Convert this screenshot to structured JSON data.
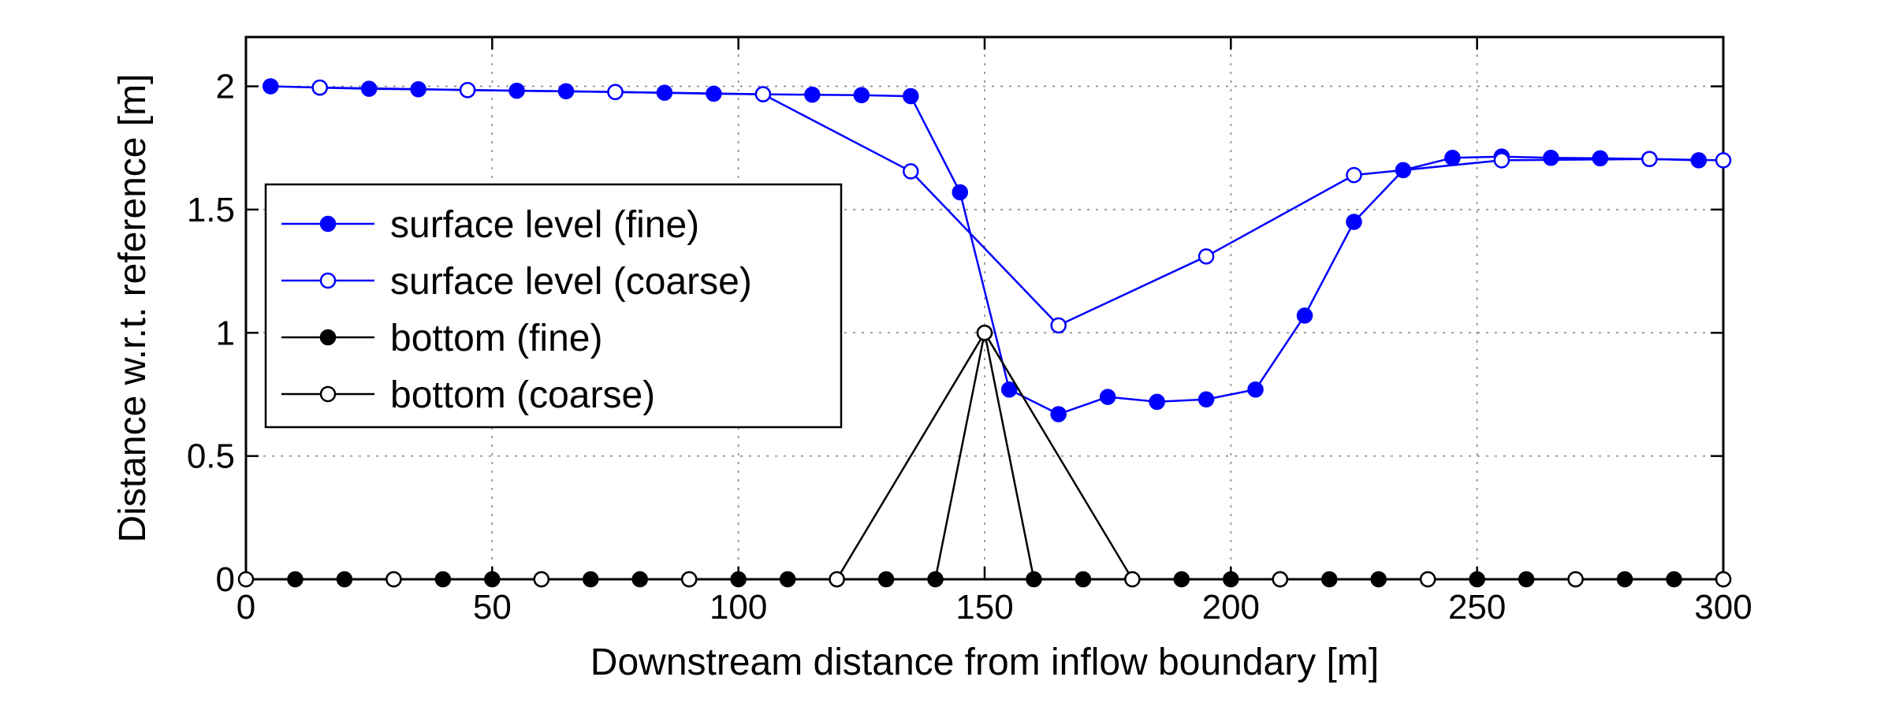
{
  "chart_data": {
    "type": "line",
    "title": "",
    "xlabel": "Downstream distance from inflow boundary [m]",
    "ylabel": "Distance w.r.t. reference [m]",
    "xlim": [
      0,
      300
    ],
    "ylim": [
      0,
      2.2
    ],
    "xticks": [
      0,
      50,
      100,
      150,
      200,
      250,
      300
    ],
    "yticks": [
      0,
      0.5,
      1,
      1.5,
      2
    ],
    "xtick_labels": [
      "0",
      "50",
      "100",
      "150",
      "200",
      "250",
      "300"
    ],
    "ytick_labels": [
      "0",
      "0.5",
      "1",
      "1.5",
      "2"
    ],
    "grid": true,
    "legend_position": "left",
    "series": [
      {
        "name": "surface level (fine)",
        "color": "#0000ff",
        "marker": "filled-circle",
        "x": [
          5,
          15,
          25,
          35,
          45,
          55,
          65,
          75,
          85,
          95,
          105,
          115,
          125,
          135,
          145,
          155,
          165,
          175,
          185,
          195,
          205,
          215,
          225,
          235,
          245,
          255,
          265,
          275,
          285,
          295
        ],
        "y": [
          2.0,
          1.995,
          1.99,
          1.988,
          1.985,
          1.982,
          1.98,
          1.977,
          1.974,
          1.97,
          1.968,
          1.966,
          1.964,
          1.96,
          1.57,
          0.77,
          0.67,
          0.74,
          0.72,
          0.73,
          0.77,
          1.07,
          1.45,
          1.66,
          1.71,
          1.715,
          1.71,
          1.708,
          1.705,
          1.7
        ]
      },
      {
        "name": "surface level (coarse)",
        "color": "#0000ff",
        "marker": "open-circle",
        "x": [
          15,
          45,
          75,
          105,
          135,
          165,
          195,
          225,
          255,
          285,
          300
        ],
        "y": [
          1.995,
          1.985,
          1.977,
          1.968,
          1.655,
          1.03,
          1.31,
          1.64,
          1.7,
          1.705,
          1.7
        ]
      },
      {
        "name": "bottom (fine)",
        "color": "#000000",
        "marker": "filled-circle",
        "x": [
          10,
          20,
          30,
          40,
          50,
          60,
          70,
          80,
          90,
          100,
          110,
          120,
          130,
          140,
          150,
          160,
          170,
          180,
          190,
          200,
          210,
          220,
          230,
          240,
          250,
          260,
          270,
          280,
          290,
          300
        ],
        "y": [
          0,
          0,
          0,
          0,
          0,
          0,
          0,
          0,
          0,
          0,
          0,
          0,
          0,
          0,
          1,
          0,
          0,
          0,
          0,
          0,
          0,
          0,
          0,
          0,
          0,
          0,
          0,
          0,
          0,
          0
        ]
      },
      {
        "name": "bottom (coarse)",
        "color": "#000000",
        "marker": "open-circle",
        "x": [
          0,
          30,
          60,
          90,
          120,
          150,
          180,
          210,
          240,
          270,
          300
        ],
        "y": [
          0,
          0,
          0,
          0,
          0,
          1,
          0,
          0,
          0,
          0,
          0
        ]
      }
    ]
  }
}
